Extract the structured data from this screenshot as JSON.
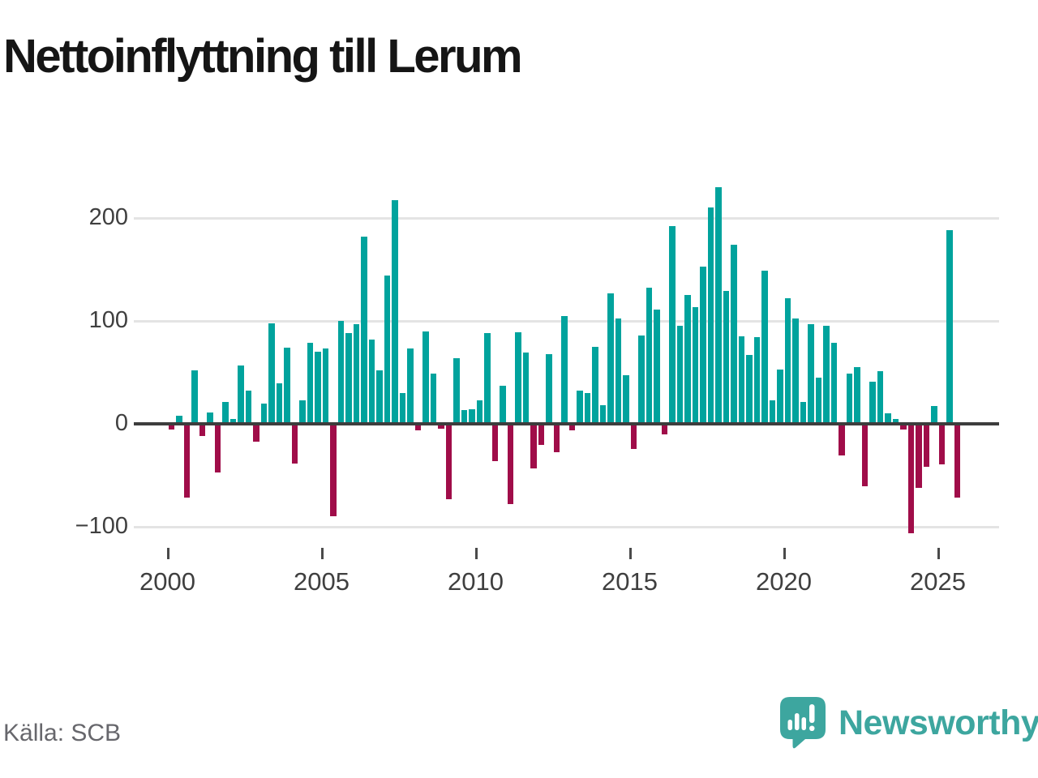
{
  "title": "Nettoinflyttning till Lerum",
  "source": "Källa: SCB",
  "branding": {
    "name": "Newsworthy"
  },
  "colors": {
    "positive_bar": "#00a39d",
    "negative_bar": "#a00d49",
    "gridline": "#e4e4e4",
    "zero_line": "#3d3d3d",
    "axis_text": "#3f3f3f",
    "title_text": "#151515",
    "source_text": "#67676c",
    "brand_teal": "#3da69f"
  },
  "chart_data": {
    "type": "bar",
    "title": "Nettoinflyttning till Lerum",
    "frequency": "quarterly",
    "start_year": 2000,
    "start_quarter": 1,
    "values": [
      -4,
      8,
      -70,
      52,
      -10,
      11,
      -46,
      21,
      5,
      57,
      32,
      -16,
      20,
      98,
      39,
      74,
      -37,
      23,
      79,
      70,
      73,
      -88,
      100,
      88,
      97,
      182,
      82,
      52,
      144,
      217,
      30,
      73,
      -5,
      90,
      49,
      -3,
      -72,
      64,
      13,
      14,
      23,
      88,
      -35,
      37,
      -76,
      89,
      69,
      -42,
      -19,
      68,
      -26,
      105,
      -5,
      32,
      30,
      75,
      18,
      127,
      102,
      47,
      -23,
      86,
      132,
      111,
      -9,
      192,
      95,
      125,
      113,
      153,
      210,
      230,
      129,
      174,
      85,
      67,
      84,
      149,
      23,
      53,
      122,
      102,
      21,
      97,
      45,
      95,
      79,
      -29,
      49,
      55,
      -59,
      41,
      51,
      10,
      5,
      -4,
      -105,
      -61,
      -40,
      17,
      -38,
      188,
      -70
    ],
    "xlabel": "",
    "ylabel": "",
    "x_tick_labels": [
      "2000",
      "2005",
      "2010",
      "2015",
      "2020",
      "2025"
    ],
    "y_tick_labels": [
      "200",
      "100",
      "0",
      "−100"
    ],
    "y_ticks": [
      200,
      100,
      0,
      -100
    ],
    "ylim": [
      -130,
      245
    ],
    "grid": "horizontal",
    "legend": "none"
  }
}
